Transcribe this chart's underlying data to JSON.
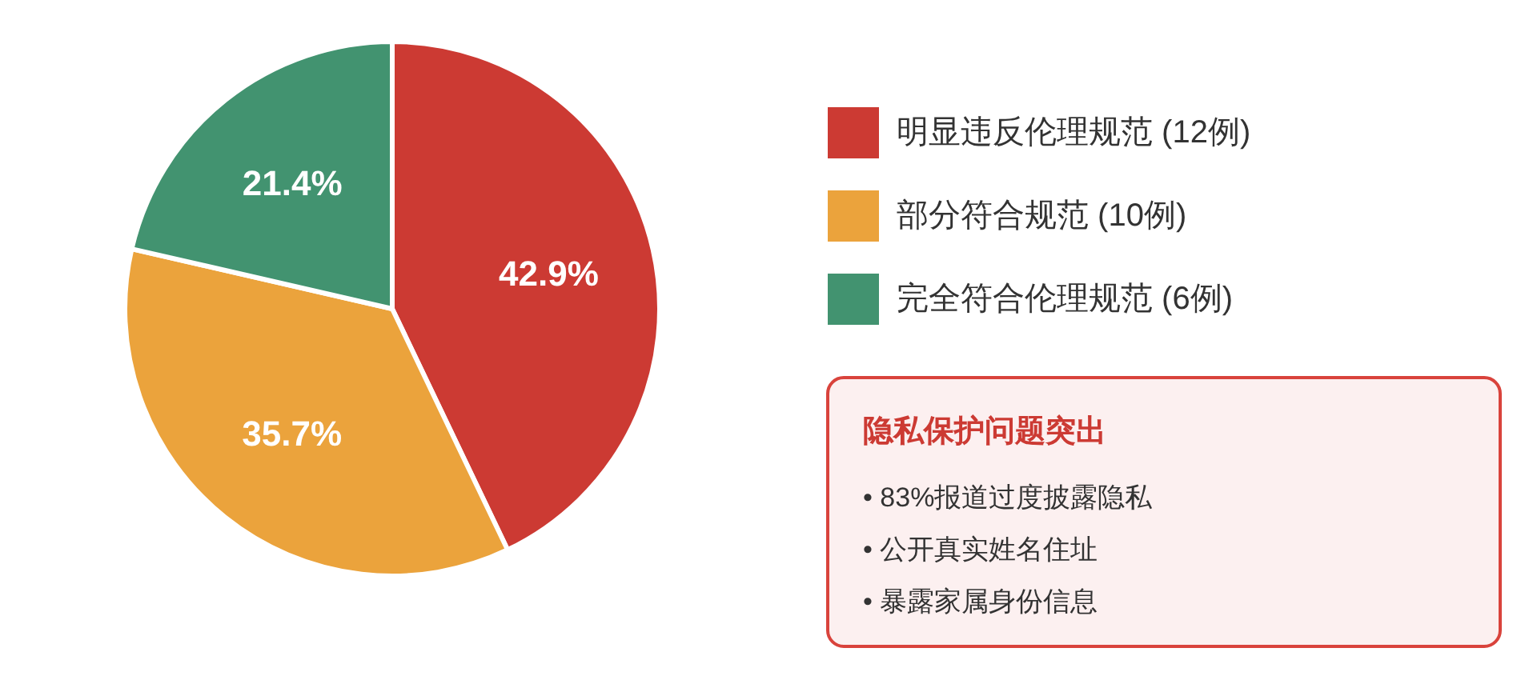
{
  "chart_data": [
    {
      "type": "pie",
      "categories": [
        "明显违反伦理规范 (12例)",
        "部分符合规范 (10例)",
        "完全符合伦理规范 (6例)"
      ],
      "values": [
        42.9,
        35.7,
        21.4
      ],
      "value_labels": [
        "42.9%",
        "35.7%",
        "21.4%"
      ],
      "colors": [
        "#cc3a33",
        "#eba33c",
        "#429370"
      ],
      "legend": "right"
    },
    {
      "type": "other",
      "title": "隐私保护问题突出",
      "annotations": [
        "• 83%报道过度披露隐私",
        "• 公开真实姓名住址",
        "• 暴露家属身份信息"
      ]
    }
  ]
}
